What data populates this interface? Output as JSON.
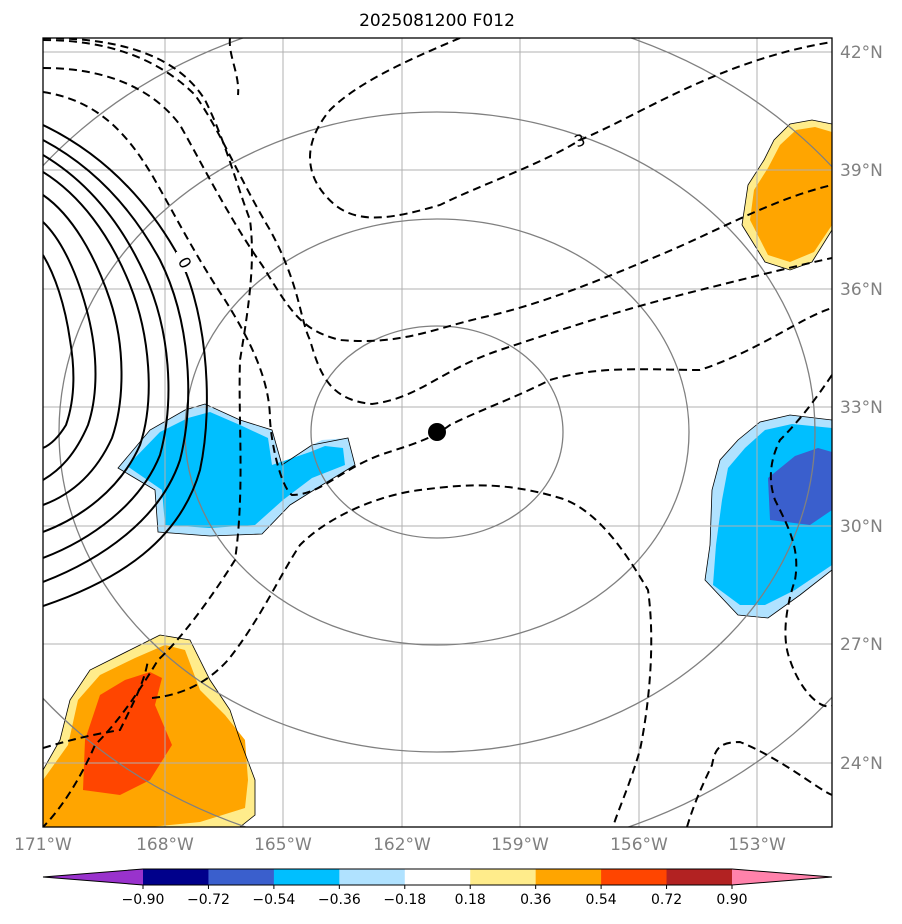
{
  "title": "2025081200 F012",
  "lon_labels": [
    "171°W",
    "168°W",
    "165°W",
    "162°W",
    "159°W",
    "156°W",
    "153°W"
  ],
  "lat_labels": [
    "42°N",
    "39°N",
    "36°N",
    "33°N",
    "30°N",
    "27°N",
    "24°N"
  ],
  "contour_labels": [
    "3",
    "0"
  ],
  "colorbar": {
    "tick_labels": [
      "−0.90",
      "−0.72",
      "−0.54",
      "−0.36",
      "−0.18",
      "0.18",
      "0.36",
      "0.54",
      "0.72",
      "0.90"
    ],
    "colors": [
      "#9932cc",
      "#00008b",
      "#3a5fcd",
      "#00bfff",
      "#b0e2ff",
      "#ffffff",
      "#ffec8b",
      "#ffa500",
      "#ff4500",
      "#b22222",
      "#ff82ab"
    ]
  },
  "colors": {
    "grid": "#b0b0b0",
    "range_rings": "#808080",
    "contour": "#000000",
    "center_marker": "#000000"
  }
}
